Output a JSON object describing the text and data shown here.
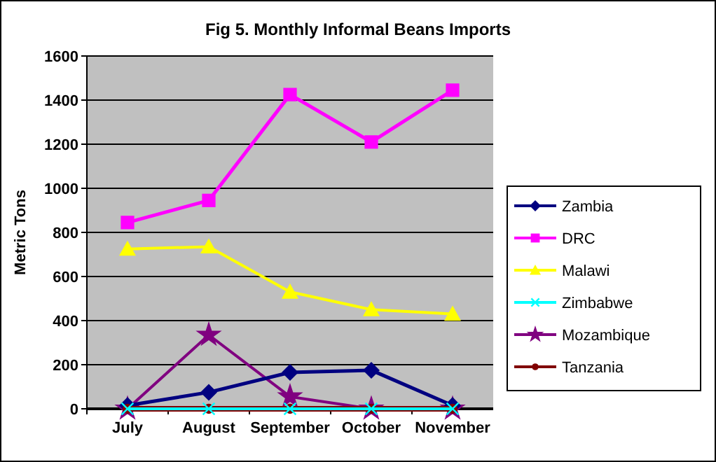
{
  "chart_data": {
    "type": "line",
    "title": "Fig 5. Monthly Informal Beans Imports",
    "ylabel": "Metric Tons",
    "categories": [
      "July",
      "August",
      "September",
      "October",
      "November"
    ],
    "ylim": [
      0,
      1600
    ],
    "yticks": [
      0,
      200,
      400,
      600,
      800,
      1000,
      1200,
      1400,
      1600
    ],
    "grid": "y",
    "legend": "right",
    "series": [
      {
        "name": "Zambia",
        "color": "#000080",
        "marker": "diamond",
        "values": [
          15,
          75,
          165,
          175,
          15
        ]
      },
      {
        "name": "DRC",
        "color": "#ff00ff",
        "marker": "square",
        "values": [
          845,
          945,
          1425,
          1210,
          1445
        ]
      },
      {
        "name": "Malawi",
        "color": "#ffff00",
        "marker": "triangle",
        "values": [
          725,
          735,
          530,
          450,
          430
        ]
      },
      {
        "name": "Zimbabwe",
        "color": "#00ffff",
        "marker": "cross",
        "values": [
          0,
          0,
          0,
          0,
          0
        ]
      },
      {
        "name": "Mozambique",
        "color": "#800080",
        "marker": "star",
        "values": [
          0,
          335,
          55,
          0,
          0
        ]
      },
      {
        "name": "Tanzania",
        "color": "#800000",
        "marker": "circle",
        "values": [
          0,
          0,
          0,
          0,
          0
        ]
      }
    ]
  }
}
